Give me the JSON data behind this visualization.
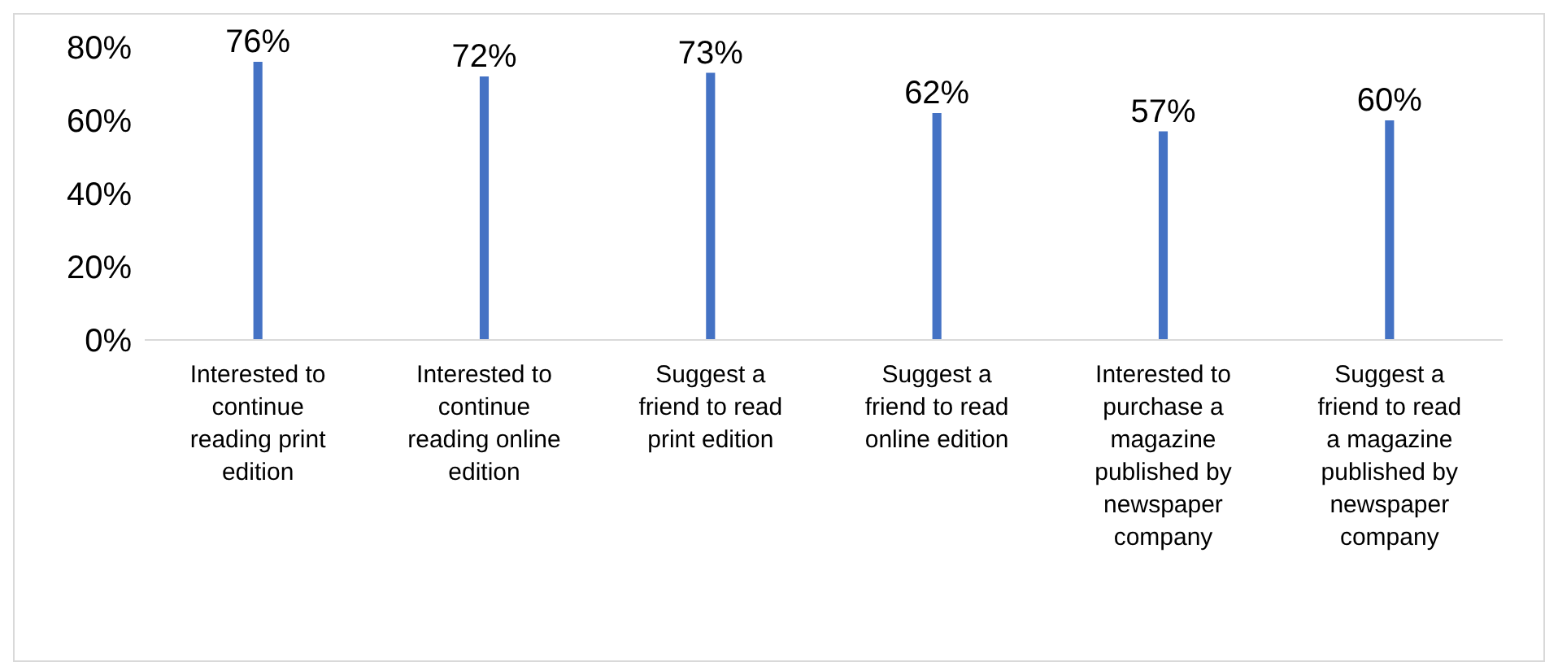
{
  "chart_data": {
    "type": "bar",
    "categories": [
      "Interested to continue reading print edition",
      "Interested to continue reading online edition",
      "Suggest a friend to read print edition",
      "Suggest a friend to read online edition",
      "Interested to purchase a magazine published by newspaper company",
      "Suggest a friend to read a magazine published by newspaper company"
    ],
    "values": [
      76,
      72,
      73,
      62,
      57,
      60
    ],
    "value_labels": [
      "76%",
      "72%",
      "73%",
      "62%",
      "57%",
      "60%"
    ],
    "color": "#4472c4",
    "ylim": [
      0,
      80
    ],
    "yticks": [
      {
        "value": 0,
        "label": "0%"
      },
      {
        "value": 20,
        "label": "20%"
      },
      {
        "value": 40,
        "label": "40%"
      },
      {
        "value": 60,
        "label": "60%"
      },
      {
        "value": 80,
        "label": "80%"
      }
    ],
    "grid": false,
    "legend": false
  }
}
